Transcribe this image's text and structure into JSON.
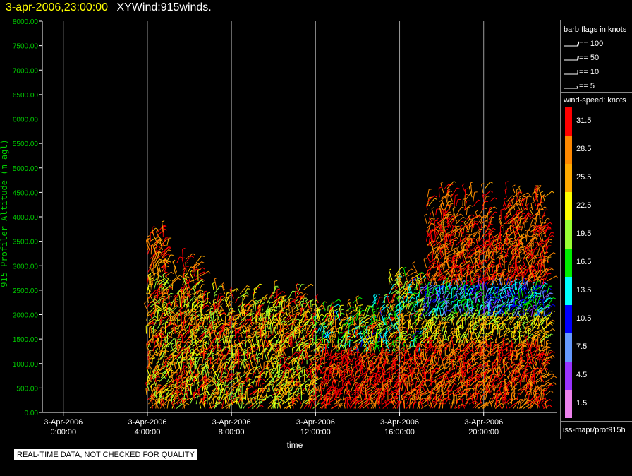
{
  "header": {
    "datetime": "3-apr-2006,23:00:00",
    "product": "XYWind:915winds."
  },
  "chart_data": {
    "type": "scatter",
    "subtype": "wind-barb time-height",
    "xlabel": "time",
    "ylabel": "915 Profiler Altitude (m agl)",
    "ylim": [
      0,
      8000
    ],
    "y_ticks": [
      "0.00",
      "500.00",
      "1000.00",
      "1500.00",
      "2000.00",
      "2500.00",
      "3000.00",
      "3500.00",
      "4000.00",
      "4500.00",
      "5000.00",
      "5500.00",
      "6000.00",
      "6500.00",
      "7000.00",
      "7500.00",
      "8000.00"
    ],
    "x_ticks": [
      {
        "date": "3-Apr-2006",
        "time": "0:00:00",
        "hour": 0
      },
      {
        "date": "3-Apr-2006",
        "time": "4:00:00",
        "hour": 4
      },
      {
        "date": "3-Apr-2006",
        "time": "8:00:00",
        "hour": 8
      },
      {
        "date": "3-Apr-2006",
        "time": "12:00:00",
        "hour": 12
      },
      {
        "date": "3-Apr-2006",
        "time": "16:00:00",
        "hour": 16
      },
      {
        "date": "3-Apr-2006",
        "time": "20:00:00",
        "hour": 20
      }
    ],
    "xlim_hours": [
      -1,
      23.5
    ],
    "grid": "vertical lines at time ticks",
    "data_hours": [
      4,
      23
    ],
    "colors": {
      "axis": "#00cc00",
      "grid": "#9a9a9a",
      "scale": [
        "#ee82ee",
        "#9933ff",
        "#6699ff",
        "#0000ff",
        "#00ffff",
        "#00ee00",
        "#99ff33",
        "#ffff00",
        "#ffaa00",
        "#ff8800",
        "#ff0000"
      ]
    }
  },
  "legend": {
    "barb_title": "barb flags in knots",
    "barbs": [
      "== 100",
      "== 50",
      "== 10",
      "== 5"
    ],
    "speed_title": "wind-speed: knots",
    "speed_labels": [
      "31.5",
      "28.5",
      "25.5",
      "22.5",
      "19.5",
      "16.5",
      "13.5",
      "10.5",
      "7.5",
      "4.5",
      "1.5"
    ]
  },
  "notes": {
    "qc": "REAL-TIME DATA, NOT CHECKED FOR QUALITY",
    "source": "iss-mapr/prof915h"
  }
}
